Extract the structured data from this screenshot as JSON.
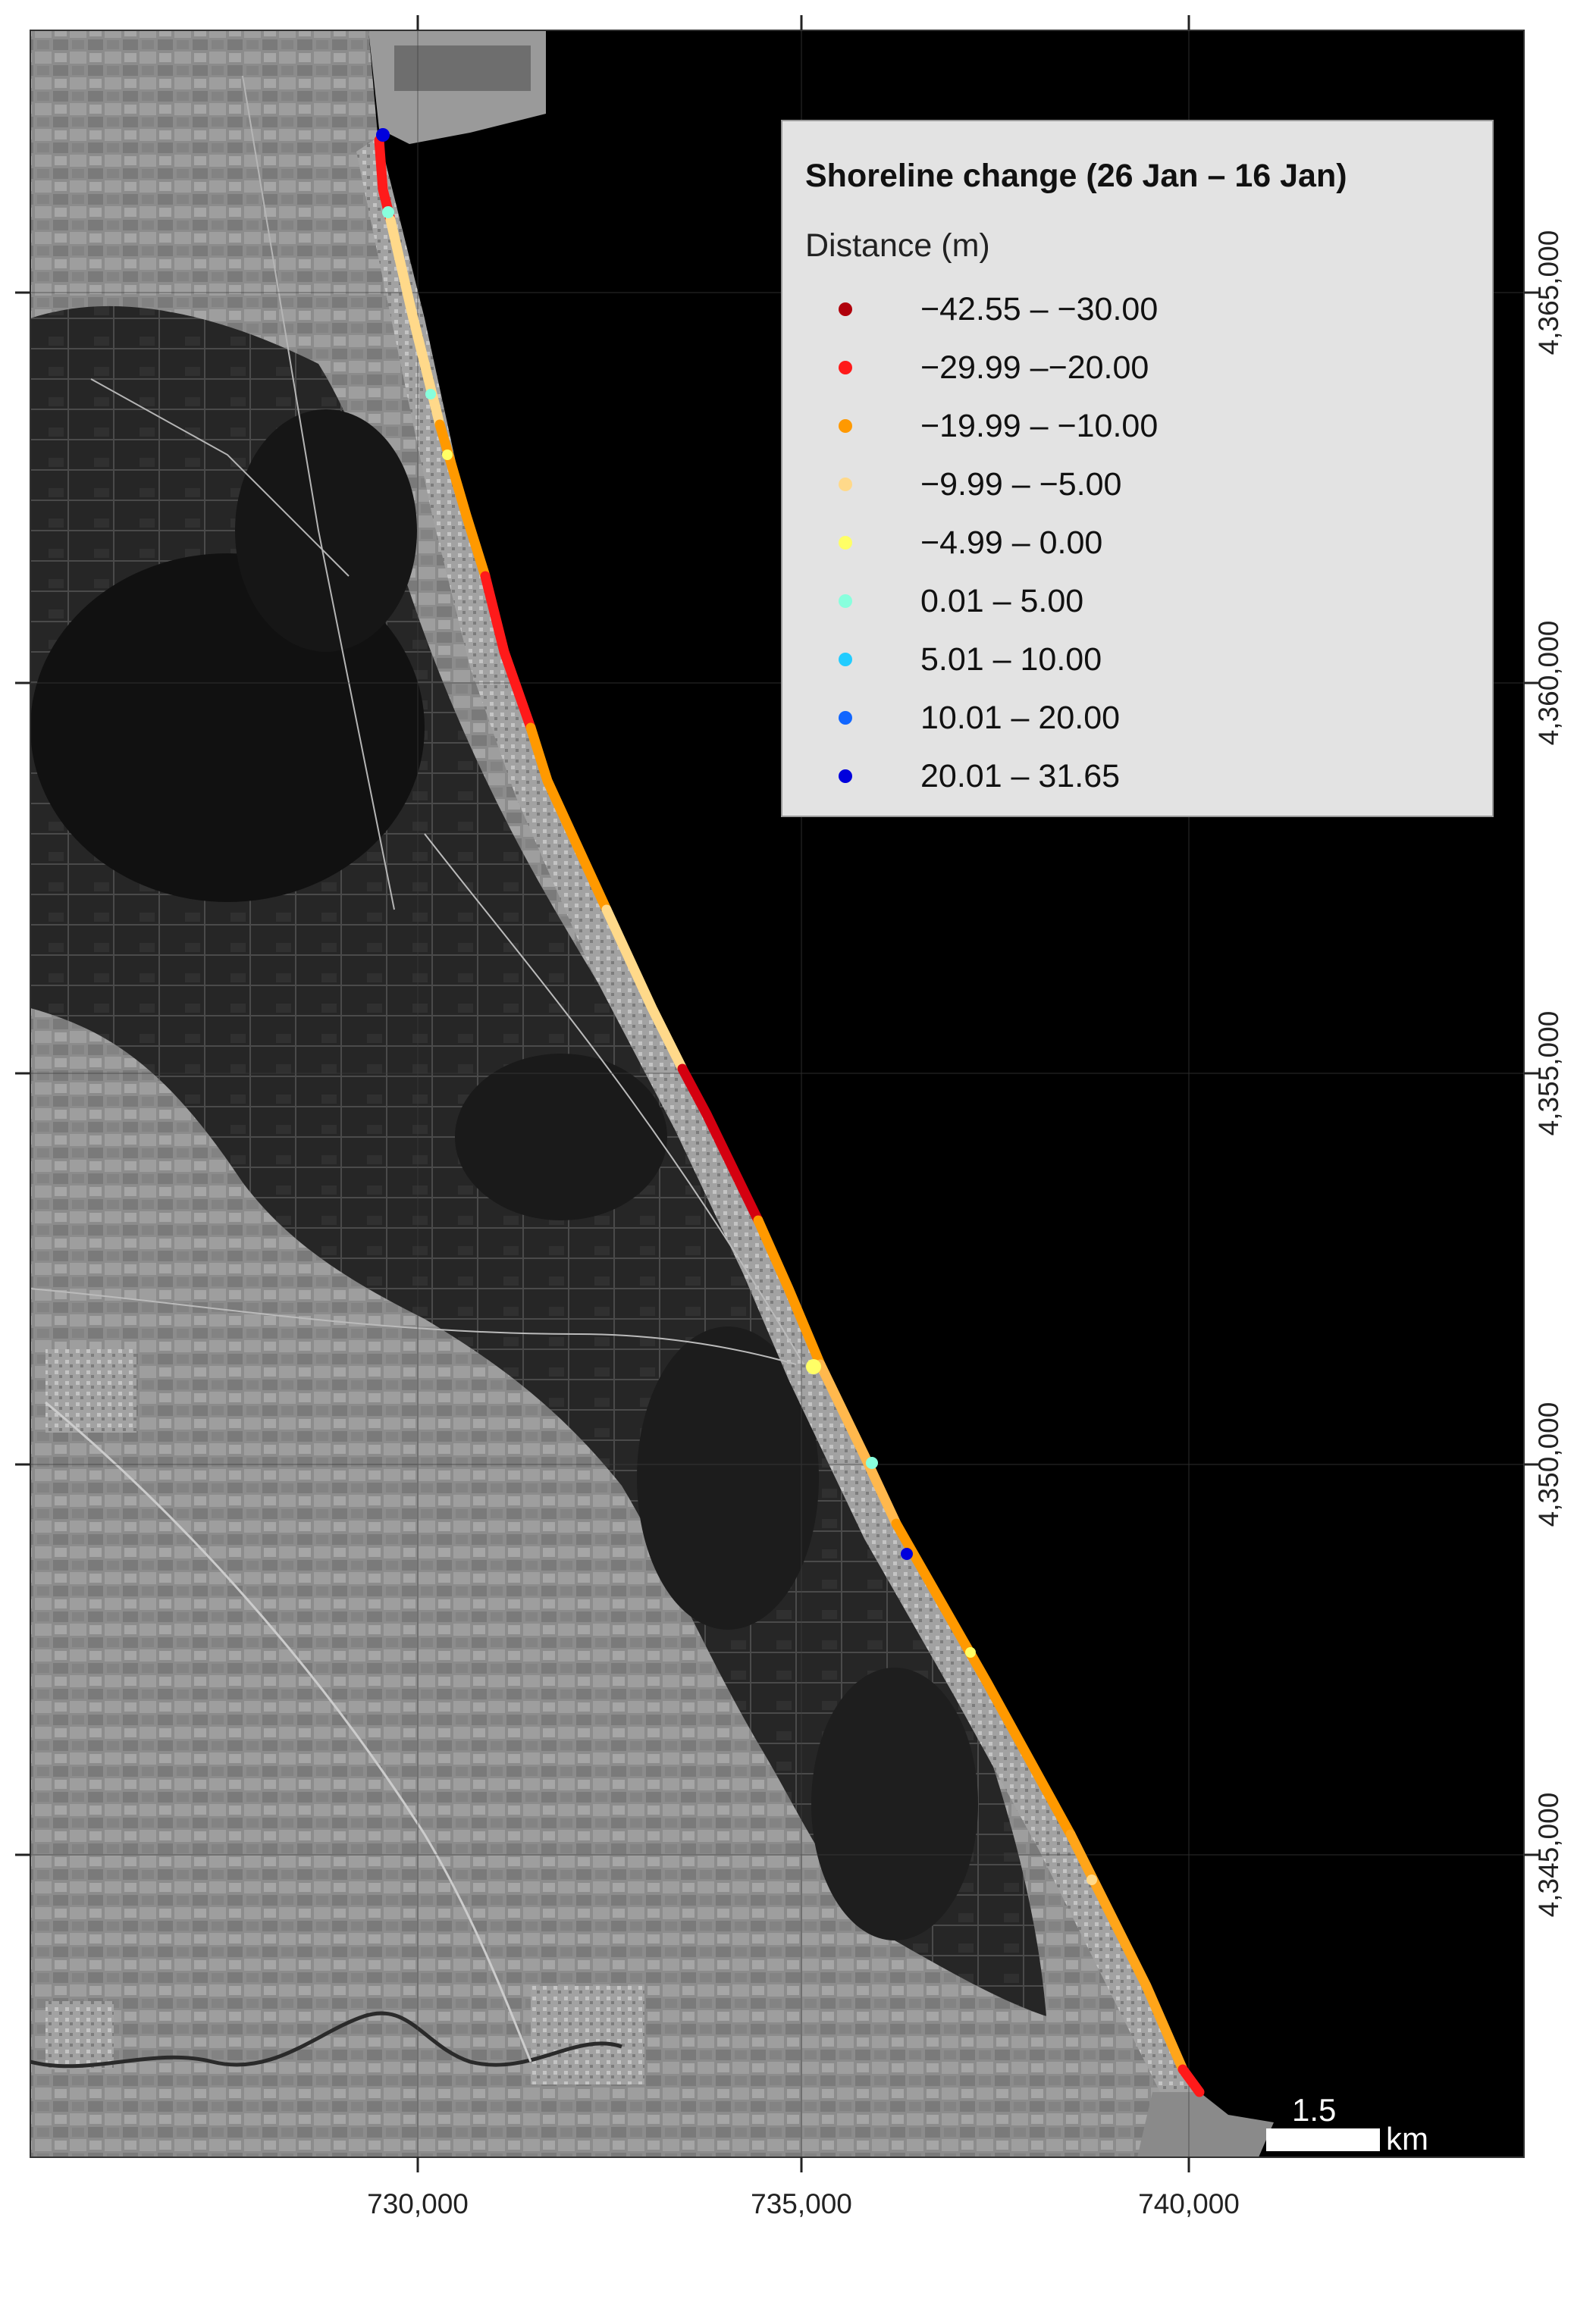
{
  "map": {
    "legend": {
      "title": "Shoreline change (26 Jan – 16 Jan)",
      "subtitle": "Distance (m)",
      "classes": [
        {
          "label": "−42.55 – −30.00",
          "color": "#b0000b"
        },
        {
          "label": "−29.99 –−20.00",
          "color": "#ff1a1a"
        },
        {
          "label": "−19.99 – −10.00",
          "color": "#ff9900"
        },
        {
          "label": "−9.99 – −5.00",
          "color": "#ffd98a"
        },
        {
          "label": "−4.99 – 0.00",
          "color": "#ffff66"
        },
        {
          "label": "0.01 – 5.00",
          "color": "#88ffdd"
        },
        {
          "label": "5.01 – 10.00",
          "color": "#22ccff"
        },
        {
          "label": "10.01 – 20.00",
          "color": "#1166ff"
        },
        {
          "label": "20.01 – 31.65",
          "color": "#0000dd"
        }
      ]
    },
    "x_axis_labels": [
      "730,000",
      "735,000",
      "740,000"
    ],
    "y_axis_labels": [
      "4,365,000",
      "4,360,000",
      "4,355,000",
      "4,350,000",
      "4,345,000"
    ],
    "scale_bar": {
      "value": "1.5",
      "unit": "km"
    }
  }
}
